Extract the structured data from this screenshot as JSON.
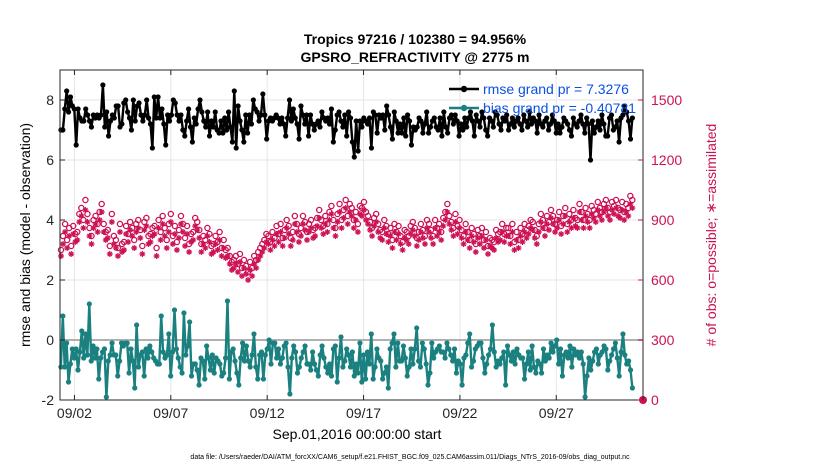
{
  "chart_data": {
    "type": "line",
    "title": "Tropics 97216 / 102380 = 94.956%",
    "subtitle": "GPSRO_REFRACTIVITY @ 2775 m",
    "xlabel": "Sep.01,2016 00:00:00 start",
    "ylabel_left": "rmse and bias (model - observation)",
    "ylabel_right": "# of obs: o=possible; ∗=assimilated",
    "footer": "data file: /Users/raeder/DAI/ATM_forcXX/CAM6_setup/f.e21.FHIST_BGC.f09_025.CAM6assim.011/Diags_NTrS_2016-09/obs_diag_output.nc",
    "x_range_days": [
      1.25,
      31.5
    ],
    "xticks": [
      {
        "day": 2,
        "label": "09/02"
      },
      {
        "day": 7,
        "label": "09/07"
      },
      {
        "day": 12,
        "label": "09/12"
      },
      {
        "day": 17,
        "label": "09/17"
      },
      {
        "day": 22,
        "label": "09/22"
      },
      {
        "day": 27,
        "label": "09/27"
      }
    ],
    "ylim_left": [
      -2,
      9
    ],
    "yticks_left": [
      "-2",
      "0",
      "2",
      "4",
      "6",
      "8"
    ],
    "ylim_right": [
      0,
      1650
    ],
    "yticks_right": [
      "0",
      "300",
      "600",
      "900",
      "1200",
      "1500"
    ],
    "grid": true,
    "legend": {
      "placement": "top-right",
      "entries": [
        "rmse grand pr = 7.3276",
        "bias grand pr = -0.40781"
      ]
    },
    "colors": {
      "rmse": "#000000",
      "bias": "#1a8080",
      "obs": "#cc1155",
      "zero_line": "#b0b0b0",
      "legend_text": "#0b50e6"
    },
    "series": [
      {
        "name": "rmse",
        "axis": "left",
        "values": [
          7.0,
          7.0,
          7.7,
          8.3,
          7.6,
          8.1,
          7.8,
          7.7,
          6.5,
          7.7,
          7.4,
          7.3,
          7.3,
          7.7,
          7.5,
          7.3,
          7.1,
          7.5,
          7.4,
          7.5,
          7.4,
          7.5,
          8.5,
          7.1,
          7.6,
          6.8,
          7.3,
          7.5,
          7.4,
          7.8,
          7.8,
          7.1,
          7.2,
          7.9,
          8.0,
          7.6,
          7.4,
          7.0,
          8.0,
          7.3,
          7.8,
          7.9,
          7.5,
          7.3,
          7.5,
          8.0,
          7.4,
          7.2,
          6.4,
          8.1,
          7.4,
          8.1,
          7.4,
          7.7,
          7.2,
          6.5,
          7.5,
          7.3,
          7.5,
          8.0,
          7.9,
          7.5,
          7.3,
          7.5,
          7.0,
          6.8,
          7.3,
          7.7,
          7.1,
          6.6,
          7.4,
          7.2,
          7.7,
          8.0,
          7.6,
          7.3,
          7.1,
          7.6,
          6.8,
          7.3,
          7.1,
          7.6,
          7.0,
          6.9,
          7.3,
          6.9,
          7.4,
          7.0,
          7.6,
          7.1,
          6.6,
          8.3,
          6.4,
          7.8,
          7.3,
          7.0,
          6.6,
          7.5,
          6.9,
          7.5,
          7.2,
          8.0,
          7.7,
          7.6,
          7.3,
          7.5,
          8.2,
          7.5,
          6.7,
          7.3,
          7.4,
          7.3,
          7.4,
          7.5,
          7.4,
          7.2,
          7.4,
          7.2,
          6.8,
          7.4,
          8.0,
          7.3,
          7.7,
          7.4,
          7.2,
          6.7,
          7.8,
          7.5,
          7.2,
          7.5,
          6.8,
          7.5,
          7.2,
          7.0,
          7.2,
          7.3,
          7.1,
          7.6,
          7.4,
          7.3,
          7.4,
          7.2,
          7.7,
          6.6,
          7.0,
          7.5,
          7.6,
          7.3,
          7.1,
          7.5,
          6.8,
          7.6,
          7.4,
          6.6,
          6.1,
          7.3,
          6.3,
          7.3,
          7.1,
          7.4,
          7.3,
          7.2,
          7.4,
          6.4,
          7.6,
          7.5,
          6.9,
          7.5,
          7.4,
          7.5,
          7.0,
          7.8,
          7.5,
          7.1,
          6.7,
          7.6,
          7.3,
          6.9,
          7.2,
          6.9,
          7.4,
          6.8,
          7.5,
          7.3,
          6.5,
          7.1,
          7.0,
          7.1,
          7.4,
          7.3,
          6.9,
          7.2,
          7.6,
          6.9,
          7.1,
          7.3,
          7.4,
          7.1,
          7.0,
          7.4,
          6.8,
          7.6,
          7.1,
          6.9,
          7.4,
          7.5,
          7.2,
          7.5,
          7.3,
          6.8,
          7.2,
          7.0,
          7.4,
          7.1,
          7.4,
          7.6,
          7.3,
          6.8,
          7.5,
          7.3,
          7.1,
          7.6,
          7.4,
          7.0,
          6.8,
          7.4,
          7.3,
          7.1,
          7.6,
          7.5,
          7.2,
          7.0,
          7.4,
          7.3,
          7.5,
          7.0,
          7.2,
          7.4,
          7.1,
          7.3,
          7.4,
          7.2,
          7.0,
          7.5,
          7.3,
          7.1,
          7.6,
          7.2,
          7.4,
          7.3,
          6.9,
          7.5,
          7.2,
          7.1,
          7.3,
          7.4,
          7.0,
          7.2,
          7.5,
          7.3,
          6.9,
          7.2,
          6.9,
          7.1,
          7.4,
          7.3,
          7.2,
          7.0,
          6.8,
          7.4,
          7.2,
          7.1,
          7.3,
          7.5,
          7.2,
          6.9,
          7.4,
          7.2,
          6.0,
          7.3,
          6.9,
          7.1,
          7.3,
          7.0,
          7.5,
          7.2,
          6.8,
          6.8,
          7.4,
          7.5,
          7.0,
          7.1,
          7.3,
          6.6,
          7.4,
          7.5,
          7.8,
          7.6,
          7.3,
          6.7,
          7.4
        ]
      },
      {
        "name": "bias",
        "axis": "left",
        "values": [
          -0.9,
          0.8,
          -0.9,
          -0.1,
          -1.4,
          -0.8,
          -0.3,
          -0.6,
          -0.3,
          -1.0,
          -0.4,
          0.3,
          -0.6,
          0.2,
          -0.5,
          1.2,
          -0.7,
          -0.2,
          -0.6,
          -0.3,
          -1.3,
          -0.6,
          -0.4,
          -0.3,
          -1.9,
          -0.7,
          -0.5,
          -0.1,
          -0.5,
          -0.5,
          -1.2,
          -0.7,
          -0.1,
          -0.2,
          -0.1,
          -0.1,
          -1.1,
          -0.3,
          -0.7,
          -1.6,
          0.5,
          -0.9,
          -0.5,
          -0.4,
          -1.2,
          -0.3,
          -0.6,
          -0.2,
          -0.4,
          -0.6,
          -0.7,
          -0.8,
          -0.8,
          0.8,
          -0.4,
          -0.6,
          -0.5,
          0.2,
          -1.2,
          -0.4,
          1.0,
          -0.3,
          -0.6,
          -0.9,
          -1.1,
          0.9,
          -0.5,
          -0.2,
          0.6,
          -1.2,
          -0.8,
          -0.8,
          -1.0,
          -1.5,
          -0.6,
          -0.7,
          -1.3,
          -0.2,
          -0.6,
          -1.0,
          -0.5,
          -1.1,
          -0.6,
          -0.7,
          -0.8,
          -1.2,
          -1.1,
          -0.6,
          1.3,
          -1.3,
          -0.4,
          -0.3,
          -0.7,
          -1.1,
          -1.5,
          -0.6,
          -0.1,
          -0.7,
          -0.2,
          -0.7,
          -0.9,
          -0.5,
          0.2,
          -0.9,
          -1.3,
          -0.5,
          -0.4,
          -1.3,
          -0.5,
          -0.3,
          0.0,
          -0.8,
          -0.1,
          -0.1,
          -0.6,
          -0.3,
          -0.8,
          -0.6,
          -0.2,
          -0.1,
          -0.9,
          -1.8,
          -0.6,
          -0.2,
          -0.4,
          -1.1,
          -0.9,
          -0.6,
          -0.4,
          -0.2,
          -0.8,
          -0.8,
          -1.0,
          -0.4,
          -0.8,
          -1.0,
          -1.2,
          -0.5,
          -0.2,
          -0.6,
          -0.9,
          -1.1,
          -0.8,
          -1.2,
          -0.3,
          -0.2,
          -1.4,
          -0.6,
          0.1,
          -0.9,
          -0.7,
          -0.3,
          -0.5,
          -0.9,
          -0.4,
          -1.2,
          -0.8,
          -1.1,
          -0.1,
          -1.4,
          -0.5,
          -1.3,
          -0.4,
          -0.8,
          0.2,
          -1.3,
          -0.9,
          -0.3,
          -0.6,
          -0.7,
          -1.3,
          -1.1,
          -0.9,
          -1.6,
          -0.3,
          -0.1,
          0.2,
          -0.9,
          -0.1,
          -0.7,
          -0.7,
          -0.2,
          -0.6,
          -1.2,
          -0.9,
          -0.3,
          -0.8,
          -0.3,
          0.4,
          -0.7,
          -0.9,
          -0.1,
          -0.3,
          -0.8,
          -1.5,
          -1.1,
          -0.1,
          -0.6,
          -0.4,
          -0.3,
          -0.2,
          -0.4,
          -0.4,
          -0.6,
          -0.1,
          -0.3,
          -0.5,
          -0.7,
          -0.3,
          -1.1,
          -0.7,
          -0.8,
          -1.5,
          -0.6,
          -0.5,
          -0.1,
          0.2,
          -0.9,
          -0.7,
          -0.3,
          -0.2,
          -0.1,
          -0.1,
          -0.6,
          -1.1,
          -0.8,
          -0.5,
          -0.3,
          0.5,
          -0.4,
          -0.9,
          -0.7,
          -0.8,
          -0.6,
          -0.4,
          -1.5,
          -0.2,
          -0.5,
          -0.7,
          -0.4,
          -0.8,
          -0.3,
          -0.5,
          -0.6,
          -0.6,
          -1.3,
          -0.8,
          -0.4,
          -1.0,
          -0.2,
          -0.9,
          -1.1,
          -0.7,
          -0.8,
          -1.1,
          -0.3,
          -0.7,
          -0.5,
          -0.6,
          -0.1,
          -0.4,
          -0.2,
          0.0,
          -0.8,
          -0.3,
          -1.2,
          -0.5,
          -0.4,
          -0.6,
          -0.2,
          -0.9,
          -0.3,
          -0.5,
          -0.4,
          -0.6,
          -0.4,
          -0.8,
          -1.9,
          -1.2,
          -0.6,
          -1.0,
          -0.7,
          -0.4,
          -0.3,
          -0.8,
          -0.5,
          -0.4,
          -0.2,
          -0.3,
          -1.0,
          -0.7,
          -0.5,
          -0.3,
          -0.1,
          -0.6,
          -1.2,
          -0.4,
          0.2,
          -0.5,
          -0.8,
          -0.7,
          -1.0,
          -1.6
        ]
      },
      {
        "name": "obs_possible",
        "axis": "right",
        "values": [
          750,
          820,
          880,
          800,
          860,
          770,
          870,
          830,
          840,
          930,
          960,
          900,
          1000,
          930,
          860,
          820,
          900,
          920,
          880,
          940,
          980,
          880,
          840,
          850,
          770,
          930,
          820,
          800,
          760,
          880,
          780,
          790,
          870,
          830,
          890,
          860,
          800,
          880,
          900,
          850,
          770,
          890,
          910,
          820,
          830,
          860,
          870,
          760,
          900,
          840,
          920,
          860,
          800,
          880,
          930,
          820,
          870,
          790,
          850,
          920,
          880,
          810,
          870,
          780,
          830,
          840,
          910,
          890,
          850,
          780,
          820,
          800,
          860,
          830,
          770,
          780,
          820,
          790,
          840,
          760,
          800,
          750,
          760,
          720,
          690,
          700,
          720,
          680,
          730,
          660,
          700,
          670,
          640,
          690,
          660,
          720,
          700,
          740,
          760,
          780,
          800,
          830,
          820,
          790,
          840,
          810,
          870,
          830,
          880,
          810,
          850,
          900,
          870,
          810,
          840,
          920,
          880,
          830,
          860,
          920,
          890,
          840,
          880,
          900,
          850,
          860,
          910,
          950,
          900,
          870,
          920,
          880,
          940,
          970,
          900,
          860,
          930,
          980,
          900,
          950,
          1000,
          920,
          980,
          960,
          900,
          940,
          880,
          970,
          960,
          990,
          940,
          920,
          890,
          860,
          910,
          930,
          880,
          850,
          840,
          900,
          870,
          830,
          860,
          800,
          880,
          840,
          870,
          820,
          790,
          850,
          840,
          820,
          870,
          890,
          860,
          810,
          840,
          880,
          850,
          820,
          900,
          880,
          850,
          820,
          900,
          860,
          880,
          840,
          910,
          940,
          980,
          920,
          890,
          860,
          930,
          870,
          900,
          850,
          820,
          880,
          840,
          800,
          860,
          830,
          780,
          850,
          820,
          860,
          800,
          840,
          770,
          810,
          800,
          790,
          850,
          830,
          840,
          880,
          830,
          860,
          860,
          820,
          880,
          790,
          840,
          800,
          860,
          830,
          880,
          850,
          870,
          900,
          890,
          850,
          820,
          880,
          930,
          900,
          860,
          920,
          890,
          950,
          920,
          880,
          900,
          940,
          870,
          920,
          960,
          880,
          930,
          900,
          950,
          910,
          900,
          980,
          940,
          900,
          960,
          930,
          900,
          970,
          950,
          930,
          990,
          960,
          940,
          980,
          1000,
          960,
          940,
          990,
          970,
          1000,
          960,
          950,
          990,
          940,
          980,
          960,
          1020,
          1000
        ]
      },
      {
        "name": "obs_assimilated",
        "axis": "right",
        "values": [
          720,
          780,
          840,
          760,
          820,
          730,
          830,
          790,
          800,
          890,
          920,
          860,
          950,
          890,
          820,
          780,
          860,
          880,
          840,
          900,
          940,
          840,
          800,
          810,
          730,
          890,
          780,
          760,
          720,
          840,
          740,
          750,
          830,
          790,
          850,
          820,
          760,
          840,
          860,
          810,
          730,
          850,
          870,
          780,
          790,
          820,
          830,
          720,
          860,
          800,
          880,
          820,
          760,
          840,
          890,
          780,
          830,
          750,
          810,
          880,
          840,
          770,
          830,
          740,
          790,
          800,
          870,
          850,
          810,
          740,
          780,
          760,
          820,
          790,
          730,
          740,
          780,
          750,
          800,
          720,
          760,
          710,
          720,
          680,
          650,
          660,
          680,
          640,
          690,
          620,
          660,
          630,
          600,
          650,
          620,
          680,
          660,
          700,
          720,
          740,
          760,
          790,
          780,
          750,
          800,
          770,
          830,
          790,
          840,
          770,
          810,
          860,
          830,
          770,
          800,
          880,
          840,
          790,
          820,
          880,
          850,
          800,
          840,
          860,
          810,
          820,
          870,
          910,
          860,
          830,
          880,
          840,
          900,
          930,
          860,
          820,
          890,
          940,
          860,
          910,
          960,
          880,
          940,
          920,
          860,
          900,
          840,
          930,
          920,
          950,
          900,
          880,
          850,
          820,
          870,
          890,
          840,
          810,
          800,
          860,
          830,
          790,
          820,
          760,
          840,
          800,
          830,
          780,
          750,
          810,
          800,
          780,
          830,
          850,
          820,
          770,
          800,
          840,
          810,
          780,
          860,
          840,
          810,
          780,
          860,
          820,
          840,
          800,
          870,
          900,
          940,
          880,
          850,
          820,
          890,
          830,
          860,
          810,
          780,
          840,
          800,
          760,
          820,
          790,
          740,
          810,
          780,
          820,
          760,
          800,
          730,
          770,
          760,
          750,
          810,
          790,
          800,
          840,
          790,
          820,
          820,
          780,
          840,
          750,
          800,
          760,
          820,
          790,
          840,
          810,
          830,
          860,
          850,
          810,
          780,
          840,
          890,
          860,
          820,
          880,
          850,
          910,
          880,
          840,
          860,
          900,
          830,
          880,
          920,
          840,
          890,
          860,
          910,
          870,
          860,
          940,
          900,
          860,
          920,
          890,
          860,
          930,
          910,
          890,
          950,
          920,
          900,
          940,
          960,
          920,
          900,
          950,
          930,
          960,
          920,
          910,
          950,
          900,
          940,
          920,
          980,
          960
        ]
      }
    ],
    "final_marker": {
      "day": 31.5,
      "obs_value": 0
    }
  }
}
